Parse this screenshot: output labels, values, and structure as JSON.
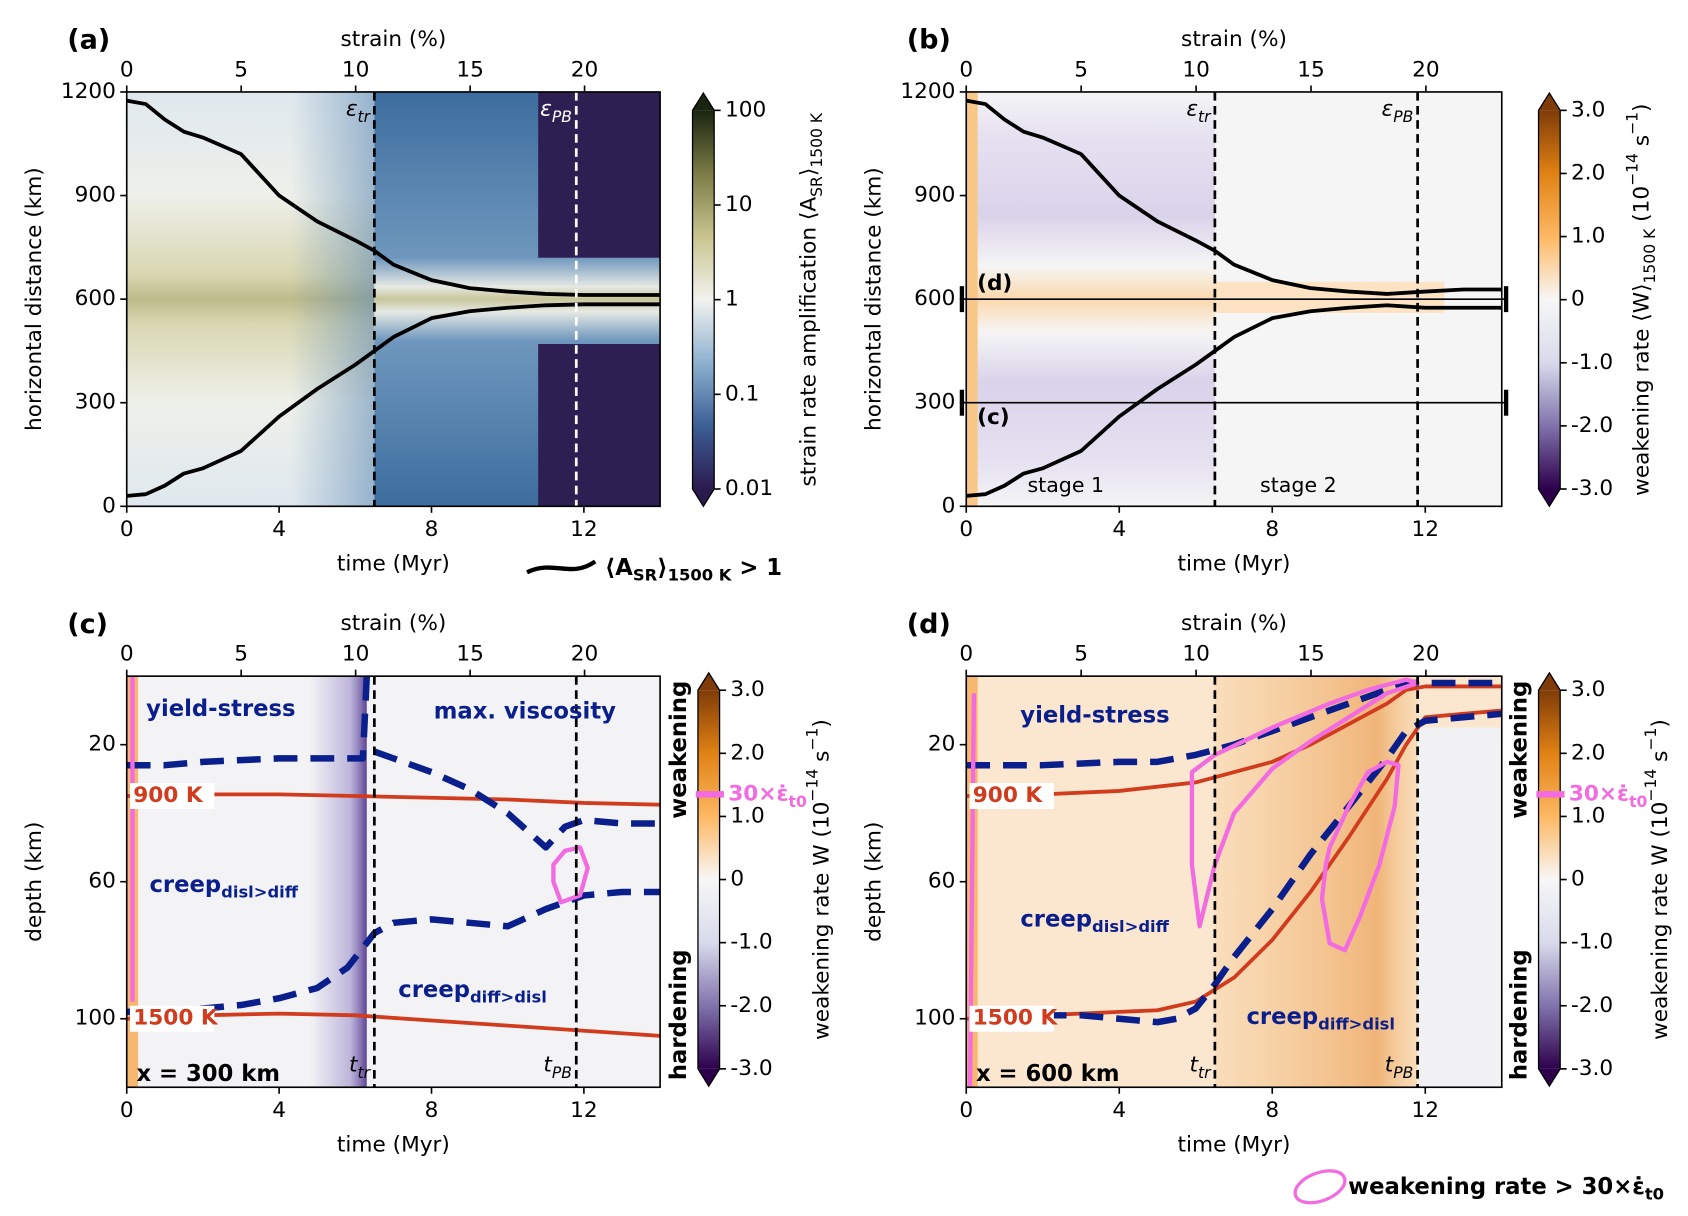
{
  "chart_data": [
    {
      "type": "heatmap",
      "panel": "(a)",
      "xlabel": "time (Myr)",
      "xlim": [
        0,
        14
      ],
      "xticks": [
        0,
        4,
        8,
        12
      ],
      "x2label": "strain (%)",
      "x2lim": [
        0,
        23.3
      ],
      "x2ticks": [
        0,
        5,
        10,
        15,
        20
      ],
      "ylabel": "horizontal distance (km)",
      "ylim": [
        0,
        1200
      ],
      "yticks": [
        0,
        300,
        600,
        900,
        1200
      ],
      "colorbar": {
        "label": [
          "strain rate amplification ⟨A",
          {
            "sub": "SR"
          },
          "⟩",
          {
            "sub": "1500 K"
          }
        ],
        "lim": [
          0.01,
          100
        ],
        "ticks": [
          0.01,
          0.1,
          1,
          10,
          100
        ],
        "log": true,
        "colors": [
          "#2b1a4e",
          "#3c5f95",
          "#8db1cf",
          "#f2f2ee",
          "#c9c48f",
          "#7b7c45",
          "#1b2410"
        ]
      },
      "vlines": [
        {
          "value": 6.5,
          "label": [
            "ε",
            {
              "sub": "tr"
            }
          ],
          "color": "#000000"
        },
        {
          "value": 11.8,
          "label": [
            "ε",
            {
              "sub": "PB"
            }
          ],
          "color": "#ffffff"
        }
      ],
      "series": [
        {
          "color": "#000000",
          "width": 3.5,
          "x": [
            0,
            0.5,
            1,
            1.5,
            2,
            3,
            4,
            5,
            6,
            6.5,
            7,
            8,
            9,
            10,
            11,
            12,
            13,
            14
          ],
          "values": [
            1175,
            1165,
            1120,
            1085,
            1068,
            1020,
            900,
            825,
            770,
            740,
            700,
            655,
            632,
            622,
            615,
            612,
            612,
            612
          ]
        },
        {
          "color": "#000000",
          "width": 3.5,
          "x": [
            0,
            0.5,
            1,
            1.5,
            2,
            3,
            4,
            5,
            6,
            6.5,
            7,
            8,
            9,
            10,
            11,
            12,
            13,
            14
          ],
          "values": [
            30,
            35,
            60,
            95,
            110,
            160,
            260,
            340,
            410,
            450,
            490,
            545,
            565,
            575,
            582,
            585,
            585,
            585
          ]
        }
      ],
      "legend": {
        "label": [
          "⟨A",
          {
            "sub": "SR"
          },
          "⟩",
          {
            "sub": "1500 K"
          },
          " > 1"
        ],
        "color": "#000000"
      }
    },
    {
      "type": "heatmap",
      "panel": "(b)",
      "xlabel": "time (Myr)",
      "xlim": [
        0,
        14
      ],
      "xticks": [
        0,
        4,
        8,
        12
      ],
      "x2label": "strain (%)",
      "x2lim": [
        0,
        23.3
      ],
      "x2ticks": [
        0,
        5,
        10,
        15,
        20
      ],
      "ylabel": "horizontal distance (km)",
      "ylim": [
        0,
        1200
      ],
      "yticks": [
        0,
        300,
        600,
        900,
        1200
      ],
      "colorbar": {
        "label": [
          "weakening rate ⟨W⟩",
          {
            "sub": "1500 K"
          },
          " (10",
          {
            "sup": "−14"
          },
          " s",
          {
            "sup": "−1"
          },
          ")"
        ],
        "lim": [
          -3,
          3
        ],
        "ticks": [
          {
            "value": 3,
            "label": "3.0"
          },
          {
            "value": 2,
            "label": "2.0"
          },
          {
            "value": 1,
            "label": "1.0"
          },
          0,
          {
            "value": -1,
            "label": "-1.0"
          },
          {
            "value": -2,
            "label": "-2.0"
          },
          {
            "value": -3,
            "label": "-3.0"
          }
        ],
        "log": false,
        "colors": [
          "#2d004b",
          "#8073ac",
          "#d8daeb",
          "#f7f7f7",
          "#fdb863",
          "#e08214",
          "#7f3b08"
        ]
      },
      "vlines": [
        {
          "value": 6.5,
          "label": [
            "ε",
            {
              "sub": "tr"
            }
          ],
          "color": "#000000"
        },
        {
          "value": 11.8,
          "label": [
            "ε",
            {
              "sub": "PB"
            }
          ],
          "color": "#000000"
        }
      ],
      "hlines": [
        {
          "value": 600,
          "label": "(d)"
        },
        {
          "value": 300,
          "label": "(c)"
        }
      ],
      "annotations": [
        "stage 1",
        "stage 2"
      ],
      "series": [
        {
          "color": "#000000",
          "width": 3.5,
          "x": [
            0,
            0.5,
            1,
            1.5,
            2,
            3,
            4,
            5,
            6,
            6.5,
            7,
            8,
            9,
            10,
            11,
            12,
            13,
            14
          ],
          "values": [
            1175,
            1165,
            1120,
            1085,
            1068,
            1020,
            900,
            825,
            770,
            740,
            700,
            655,
            632,
            622,
            615,
            622,
            628,
            628
          ]
        },
        {
          "color": "#000000",
          "width": 3.5,
          "x": [
            0,
            0.5,
            1,
            1.5,
            2,
            3,
            4,
            5,
            6,
            6.5,
            7,
            8,
            9,
            10,
            11,
            12,
            13,
            14
          ],
          "values": [
            30,
            35,
            60,
            95,
            110,
            160,
            260,
            340,
            410,
            450,
            490,
            545,
            565,
            575,
            582,
            575,
            575,
            575
          ]
        }
      ]
    },
    {
      "type": "heatmap",
      "panel": "(c)",
      "xlabel": "time (Myr)",
      "xlim": [
        0,
        14
      ],
      "xticks": [
        0,
        4,
        8,
        12
      ],
      "x2label": "strain (%)",
      "x2lim": [
        0,
        23.3
      ],
      "x2ticks": [
        0,
        5,
        10,
        15,
        20
      ],
      "ylabel": "depth (km)",
      "ylim": [
        120,
        0
      ],
      "yticks": [
        20,
        60,
        100
      ],
      "colorbar": {
        "label": [
          "weakening rate W (10",
          {
            "sup": "−14"
          },
          " s",
          {
            "sup": "−1"
          },
          ")"
        ],
        "lim": [
          -3,
          3
        ],
        "ticks": [
          {
            "value": 3,
            "label": "3.0"
          },
          {
            "value": 2,
            "label": "2.0"
          },
          {
            "value": 1,
            "label": "1.0"
          },
          0,
          {
            "value": -1,
            "label": "-1.0"
          },
          {
            "value": -2,
            "label": "-2.0"
          },
          {
            "value": -3,
            "label": "-3.0"
          }
        ],
        "log": false,
        "colors": [
          "#2d004b",
          "#8073ac",
          "#d8daeb",
          "#f7f7f7",
          "#fdb863",
          "#e08214",
          "#7f3b08"
        ],
        "marker": {
          "value": 1.35,
          "label": [
            "30",
            "×",
            "ε̇",
            {
              "sub": "t0"
            }
          ],
          "color": "#f26be0"
        },
        "side_labels": [
          "weakening",
          "hardening"
        ]
      },
      "vlines": [
        {
          "value": 6.5,
          "label": [
            "t",
            {
              "sub": "tr"
            }
          ],
          "color": "#000000"
        },
        {
          "value": 11.8,
          "label": [
            "t",
            {
              "sub": "PB"
            }
          ],
          "color": "#000000"
        }
      ],
      "annotations": [
        "yield-stress",
        "max. viscosity",
        [
          "creep",
          {
            "sub": "disl>diff"
          }
        ],
        [
          "creep",
          {
            "sub": "diff>disl"
          }
        ],
        "x = 300 km"
      ],
      "series": [
        {
          "name": "900 K",
          "color": "#d13b1e",
          "width": 3.5,
          "x": [
            0,
            2,
            4,
            6,
            8,
            10,
            12,
            14
          ],
          "values": [
            35,
            34.5,
            34.5,
            35,
            35.5,
            36,
            37,
            37.5
          ]
        },
        {
          "name": "1500 K",
          "color": "#d13b1e",
          "width": 3.5,
          "x": [
            0,
            2,
            4,
            6,
            8,
            10,
            12,
            14
          ],
          "values": [
            100,
            99,
            98.5,
            99,
            100.5,
            102,
            103.5,
            105
          ]
        },
        {
          "color": "#0a1f8c",
          "width": 6,
          "dash": true,
          "x": [
            0,
            1,
            2,
            3,
            4,
            5,
            6,
            6.2,
            6.3
          ],
          "values": [
            26,
            26,
            25,
            24.5,
            24,
            24,
            24,
            24,
            0
          ]
        },
        {
          "color": "#0a1f8c",
          "width": 6,
          "dash": true,
          "x": [
            6.5,
            7,
            8,
            9,
            10,
            10.5,
            11,
            11.5,
            12,
            13,
            14
          ],
          "values": [
            22,
            24,
            28,
            33,
            40,
            45,
            50,
            44,
            42,
            43,
            43
          ]
        },
        {
          "color": "#0a1f8c",
          "width": 6,
          "dash": true,
          "x": [
            0,
            1,
            2,
            3,
            4,
            5,
            5.8,
            6.5,
            7,
            8,
            9,
            10,
            11,
            12,
            13,
            14
          ],
          "values": [
            98,
            97.5,
            97,
            96,
            94,
            91,
            85,
            75,
            72,
            71,
            72,
            73,
            68,
            64,
            63,
            63
          ]
        },
        {
          "color": "#f26be0",
          "width": 4,
          "closed": true,
          "x": [
            11.2,
            11.5,
            11.9,
            12.1,
            11.9,
            11.4,
            11.2
          ],
          "values": [
            55,
            51,
            50,
            56,
            64,
            66,
            60
          ]
        },
        {
          "color": "#f26be0",
          "width": 4,
          "x": [
            0.15,
            0.15
          ],
          "values": [
            0,
            95
          ]
        }
      ]
    },
    {
      "type": "heatmap",
      "panel": "(d)",
      "xlabel": "time (Myr)",
      "xlim": [
        0,
        14
      ],
      "xticks": [
        0,
        4,
        8,
        12
      ],
      "x2label": "strain (%)",
      "x2lim": [
        0,
        23.3
      ],
      "x2ticks": [
        0,
        5,
        10,
        15,
        20
      ],
      "ylabel": "depth (km)",
      "ylim": [
        120,
        0
      ],
      "yticks": [
        20,
        60,
        100
      ],
      "colorbar": {
        "label": [
          "weakening rate W (10",
          {
            "sup": "−14"
          },
          " s",
          {
            "sup": "−1"
          },
          ")"
        ],
        "lim": [
          -3,
          3
        ],
        "ticks": [
          {
            "value": 3,
            "label": "3.0"
          },
          {
            "value": 2,
            "label": "2.0"
          },
          {
            "value": 1,
            "label": "1.0"
          },
          0,
          {
            "value": -1,
            "label": "-1.0"
          },
          {
            "value": -2,
            "label": "-2.0"
          },
          {
            "value": -3,
            "label": "-3.0"
          }
        ],
        "log": false,
        "colors": [
          "#2d004b",
          "#8073ac",
          "#d8daeb",
          "#f7f7f7",
          "#fdb863",
          "#e08214",
          "#7f3b08"
        ],
        "marker": {
          "value": 1.35,
          "label": [
            "30",
            "×",
            "ε̇",
            {
              "sub": "t0"
            }
          ],
          "color": "#f26be0"
        },
        "side_labels": [
          "weakening",
          "hardening"
        ]
      },
      "vlines": [
        {
          "value": 6.5,
          "label": [
            "t",
            {
              "sub": "tr"
            }
          ],
          "color": "#000000"
        },
        {
          "value": 11.8,
          "label": [
            "t",
            {
              "sub": "PB"
            }
          ],
          "color": "#000000"
        }
      ],
      "annotations": [
        "yield-stress",
        [
          "creep",
          {
            "sub": "disl>diff"
          }
        ],
        [
          "creep",
          {
            "sub": "diff>disl"
          }
        ],
        "x = 600 km"
      ],
      "series": [
        {
          "name": "900 K",
          "color": "#d13b1e",
          "width": 3.5,
          "x": [
            0,
            2,
            4,
            6,
            8,
            9,
            10,
            11,
            11.5,
            12,
            13,
            14
          ],
          "values": [
            35,
            34.5,
            33.5,
            31,
            25,
            20,
            14,
            8,
            4,
            3,
            3,
            3
          ]
        },
        {
          "name": "1500 K",
          "color": "#d13b1e",
          "width": 3.5,
          "x": [
            0,
            2,
            4,
            5,
            6,
            7,
            8,
            9,
            10,
            11,
            11.5,
            12,
            13,
            14
          ],
          "values": [
            100,
            99,
            98,
            97.5,
            95,
            88,
            77,
            63,
            47,
            30,
            20,
            12,
            11,
            10
          ]
        },
        {
          "color": "#0a1f8c",
          "width": 6,
          "dash": true,
          "x": [
            0,
            2,
            4,
            5,
            6,
            7,
            8,
            9,
            10,
            11,
            11.5,
            12,
            13,
            14
          ],
          "values": [
            26,
            26,
            25,
            25,
            23,
            20,
            16,
            12,
            8,
            4,
            2,
            2,
            2,
            2
          ]
        },
        {
          "color": "#0a1f8c",
          "width": 6,
          "dash": true,
          "x": [
            2,
            3,
            4,
            5,
            5.5,
            6,
            6.5,
            7,
            8,
            9,
            10,
            11,
            11.5,
            12,
            13,
            14
          ],
          "values": [
            99,
            99,
            100,
            101,
            100,
            97,
            90,
            82,
            68,
            52,
            38,
            24,
            16,
            13,
            12,
            11
          ]
        },
        {
          "color": "#f26be0",
          "width": 4,
          "closed": true,
          "x": [
            5.9,
            6.5,
            8,
            9.5,
            10.5,
            11.5,
            11.8,
            11,
            10,
            9,
            8,
            7,
            6.5,
            6.1,
            5.9
          ],
          "values": [
            28,
            23,
            15,
            8,
            4,
            1,
            2,
            5,
            12,
            19,
            27,
            40,
            55,
            73,
            55
          ]
        },
        {
          "color": "#f26be0",
          "width": 4,
          "closed": true,
          "x": [
            9.5,
            10,
            10.5,
            11,
            11.3,
            11.2,
            10.8,
            10.3,
            9.9,
            9.5,
            9.3,
            9.4
          ],
          "values": [
            50,
            38,
            28,
            25,
            26,
            38,
            55,
            70,
            80,
            78,
            65,
            55
          ]
        },
        {
          "color": "#f26be0",
          "width": 4,
          "x": [
            0.1,
            0.2
          ],
          "values": [
            120,
            5
          ]
        }
      ],
      "legend": {
        "label": [
          "weakening rate > 30",
          "×",
          "ε̇",
          {
            "sub": "t0"
          }
        ],
        "color": "#f26be0"
      }
    }
  ]
}
